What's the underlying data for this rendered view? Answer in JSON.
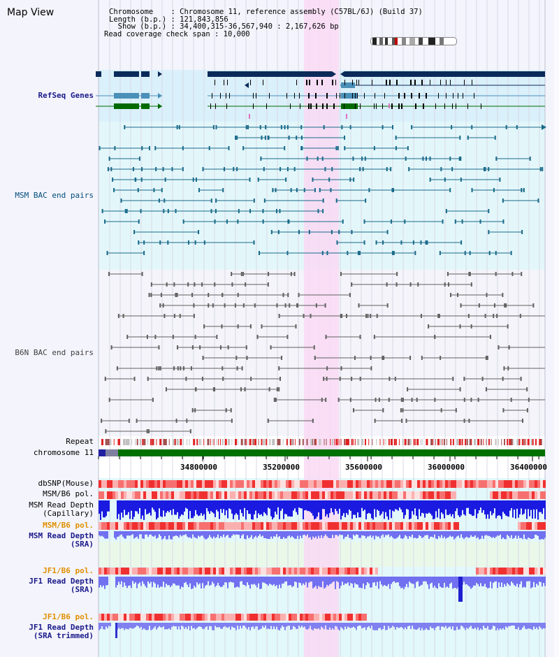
{
  "header": {
    "title": "Map View",
    "info_lines": [
      "Chromosome    : Chromosome 11, reference assembly (C57BL/6J) (Build 37)",
      "Length (b.p.) : 121,843,856",
      "  Show (b.p.) : 34,400,315-36,567,940 : 2,167,626 bp",
      "Read coverage check span : 10,000"
    ]
  },
  "tracks": {
    "refseq": "RefSeq Genes",
    "msm_bac": "MSM BAC end pairs",
    "b6n_bac": "B6N BAC end pairs",
    "repeat": "Repeat",
    "chromosome": "chromosome 11",
    "dbsnp": "dbSNP(Mouse)",
    "msm_b6_pol_1": "MSM/B6 pol.",
    "msm_depth_cap": "MSM Read Depth\n(Capillary)",
    "msm_b6_pol_2": "MSM/B6 pol.",
    "msm_depth_sra": "MSM Read Depth\n(SRA)",
    "jf1_b6_pol_1": "JF1/B6 pol.",
    "jf1_depth_sra": "JF1 Read Depth\n(SRA)",
    "jf1_b6_pol_2": "JF1/B6 pol.",
    "jf1_depth_trim": "JF1 Read Depth\n(SRA trimmed)"
  },
  "axis": {
    "ticks": [
      "34800000",
      "35200000",
      "35600000",
      "36000000",
      "36400000"
    ]
  },
  "colors": {
    "highlight": "#f9d9f3",
    "refseq_bg": "#daf0fa",
    "msm_bg": "#e3f7fa",
    "b6n_bg": "#f4f4fa",
    "gene_navy": "#0a2a5a",
    "gene_steel": "#4a90b8",
    "gene_green": "#006a00",
    "msm_line": "#1a6a8a",
    "b6n_line": "#606060",
    "chrom_green": "#007000",
    "repeat_red": "#e02020"
  }
}
